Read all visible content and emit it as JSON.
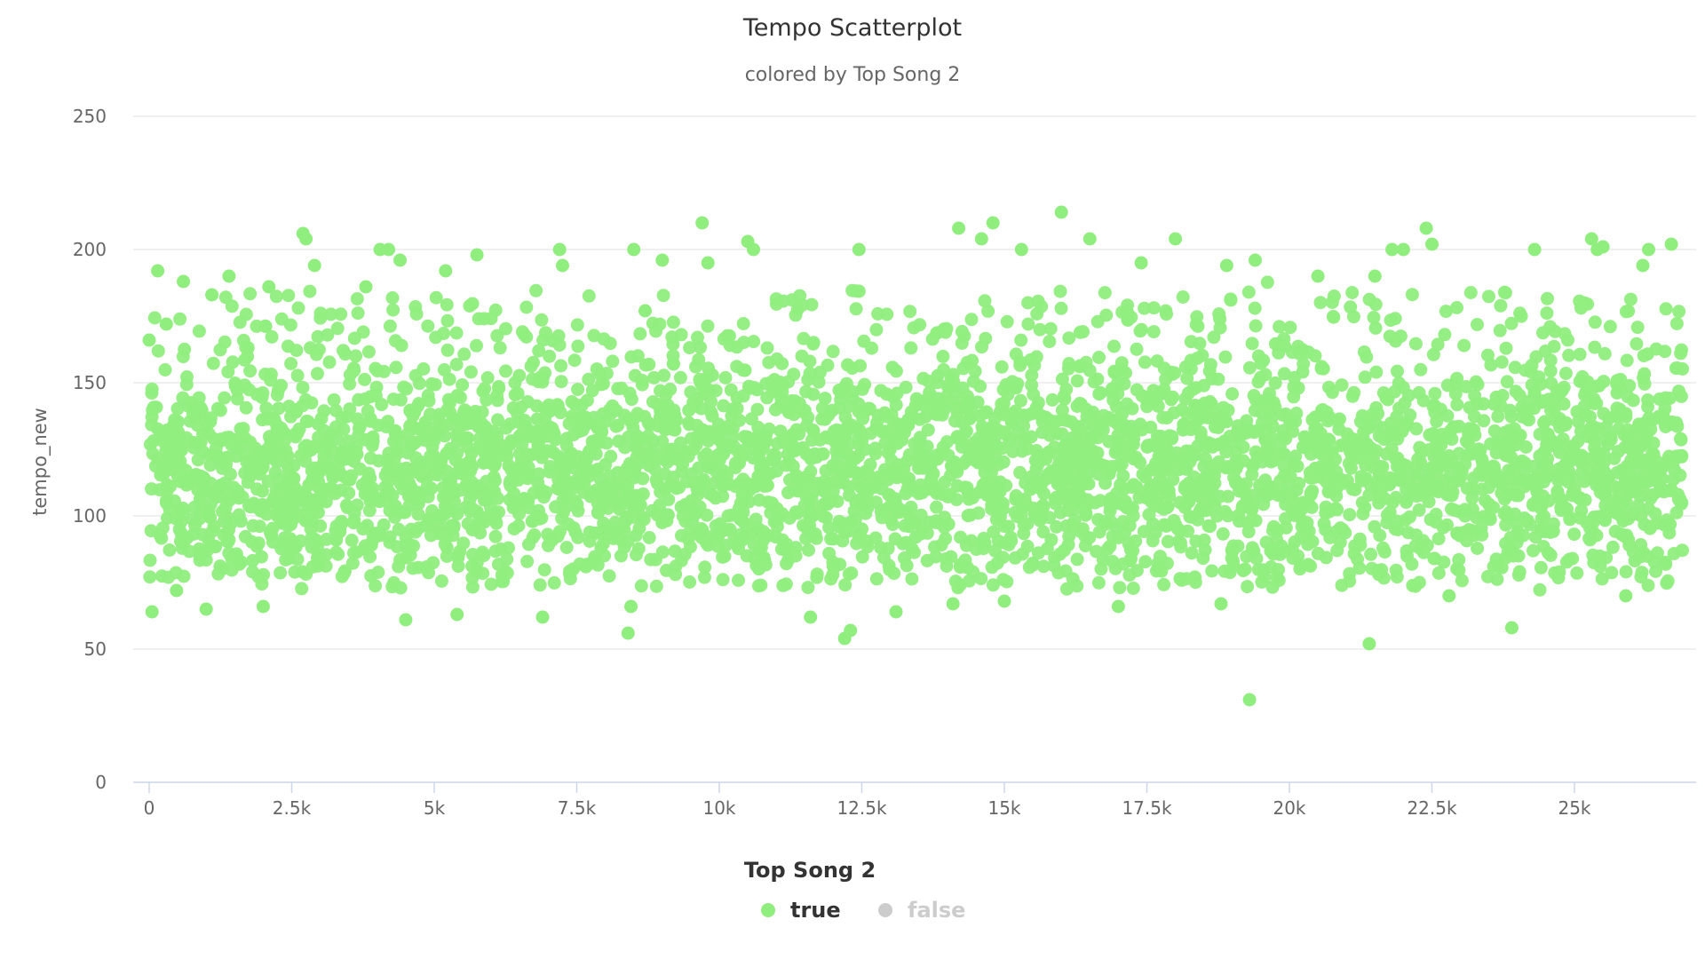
{
  "chart_data": {
    "type": "scatter",
    "title": "Tempo Scatterplot",
    "subtitle": "colored by Top Song 2",
    "xlabel": "",
    "ylabel": "tempo_new",
    "xlim": [
      -500,
      27000
    ],
    "ylim": [
      0,
      250
    ],
    "x_ticks": [
      0,
      2500,
      5000,
      7500,
      10000,
      12500,
      15000,
      17500,
      20000,
      22500,
      25000
    ],
    "x_tick_labels": [
      "0",
      "2.5k",
      "5k",
      "7.5k",
      "10k",
      "12.5k",
      "15k",
      "17.5k",
      "20k",
      "22.5k",
      "25k"
    ],
    "y_ticks": [
      0,
      50,
      100,
      150,
      200,
      250
    ],
    "y_tick_labels": [
      "0",
      "50",
      "100",
      "150",
      "200",
      "250"
    ],
    "grid": true,
    "legend": {
      "title": "Top Song 2",
      "placement": "bottom-center",
      "entries": [
        {
          "name": "true",
          "color": "#90ee7e",
          "active": true
        },
        {
          "name": "false",
          "color": "#cccccc",
          "active": false
        }
      ]
    },
    "series": [
      {
        "name": "true",
        "color": "#90ee7e",
        "approx_point_count": 4200,
        "distribution": {
          "x_range": [
            0,
            26900
          ],
          "y_core_range": [
            78,
            185
          ],
          "y_dense_center": 118
        },
        "points": [
          [
            0,
            166
          ],
          [
            50,
            64
          ],
          [
            150,
            192
          ],
          [
            300,
            172
          ],
          [
            480,
            72
          ],
          [
            600,
            188
          ],
          [
            1000,
            65
          ],
          [
            1100,
            183
          ],
          [
            1400,
            190
          ],
          [
            2000,
            66
          ],
          [
            2100,
            186
          ],
          [
            2700,
            206
          ],
          [
            2750,
            204
          ],
          [
            2900,
            194
          ],
          [
            3800,
            186
          ],
          [
            4050,
            200
          ],
          [
            4200,
            200
          ],
          [
            4400,
            196
          ],
          [
            4500,
            61
          ],
          [
            5200,
            192
          ],
          [
            5400,
            63
          ],
          [
            5750,
            198
          ],
          [
            6900,
            62
          ],
          [
            7200,
            200
          ],
          [
            7250,
            194
          ],
          [
            8400,
            56
          ],
          [
            8450,
            66
          ],
          [
            8500,
            200
          ],
          [
            8700,
            177
          ],
          [
            9000,
            196
          ],
          [
            9700,
            210
          ],
          [
            9800,
            195
          ],
          [
            10500,
            203
          ],
          [
            10600,
            200
          ],
          [
            11600,
            62
          ],
          [
            12200,
            54
          ],
          [
            12300,
            57
          ],
          [
            12450,
            200
          ],
          [
            13100,
            64
          ],
          [
            14100,
            67
          ],
          [
            14200,
            208
          ],
          [
            14600,
            204
          ],
          [
            14800,
            210
          ],
          [
            15000,
            68
          ],
          [
            15300,
            200
          ],
          [
            16000,
            214
          ],
          [
            16500,
            204
          ],
          [
            17000,
            66
          ],
          [
            17400,
            195
          ],
          [
            18000,
            204
          ],
          [
            18800,
            67
          ],
          [
            18900,
            194
          ],
          [
            19300,
            31
          ],
          [
            19400,
            196
          ],
          [
            20500,
            190
          ],
          [
            21400,
            52
          ],
          [
            21500,
            190
          ],
          [
            21800,
            200
          ],
          [
            22000,
            200
          ],
          [
            22400,
            208
          ],
          [
            22500,
            202
          ],
          [
            22800,
            70
          ],
          [
            23900,
            58
          ],
          [
            24300,
            200
          ],
          [
            25300,
            204
          ],
          [
            25400,
            200
          ],
          [
            25500,
            201
          ],
          [
            25900,
            70
          ],
          [
            26200,
            194
          ],
          [
            26300,
            200
          ],
          [
            26700,
            202
          ]
        ]
      },
      {
        "name": "false",
        "color": "#cccccc",
        "points": []
      }
    ]
  }
}
